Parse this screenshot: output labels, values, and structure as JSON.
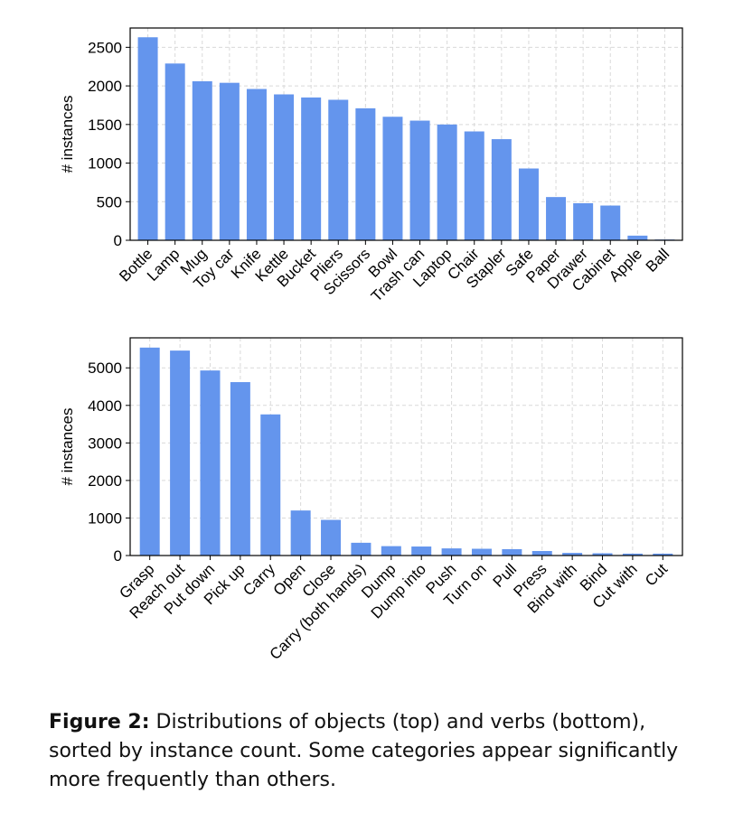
{
  "chart_data": [
    {
      "type": "bar",
      "categories": [
        "Bottle",
        "Lamp",
        "Mug",
        "Toy car",
        "Knife",
        "Kettle",
        "Bucket",
        "Pliers",
        "Scissors",
        "Bowl",
        "Trash can",
        "Laptop",
        "Chair",
        "Stapler",
        "Safe",
        "Paper",
        "Drawer",
        "Cabinet",
        "Apple",
        "Ball"
      ],
      "values": [
        2630,
        2290,
        2060,
        2040,
        1960,
        1890,
        1850,
        1820,
        1710,
        1600,
        1550,
        1500,
        1410,
        1310,
        930,
        560,
        480,
        450,
        60,
        10
      ],
      "ylabel": "# instances",
      "ylim": [
        0,
        2750
      ],
      "yticks": [
        0,
        500,
        1000,
        1500,
        2000,
        2500
      ],
      "grid": true,
      "color": "#6495ed"
    },
    {
      "type": "bar",
      "categories": [
        "Grasp",
        "Reach out",
        "Put down",
        "Pick up",
        "Carry",
        "Open",
        "Close",
        "Carry (both hands)",
        "Dump",
        "Dump into",
        "Push",
        "Turn on",
        "Pull",
        "Press",
        "Bind with",
        "Bind",
        "Cut with",
        "Cut"
      ],
      "values": [
        5540,
        5460,
        4930,
        4620,
        3760,
        1200,
        950,
        340,
        250,
        240,
        190,
        180,
        170,
        120,
        70,
        60,
        50,
        50
      ],
      "ylabel": "# instances",
      "ylim": [
        0,
        5800
      ],
      "yticks": [
        0,
        1000,
        2000,
        3000,
        4000,
        5000
      ],
      "grid": true,
      "color": "#6495ed"
    }
  ],
  "caption": {
    "label": "Figure 2:",
    "text": "Distributions of objects (top) and verbs (bottom), sorted by instance count. Some categories appear significantly more frequently than others."
  }
}
